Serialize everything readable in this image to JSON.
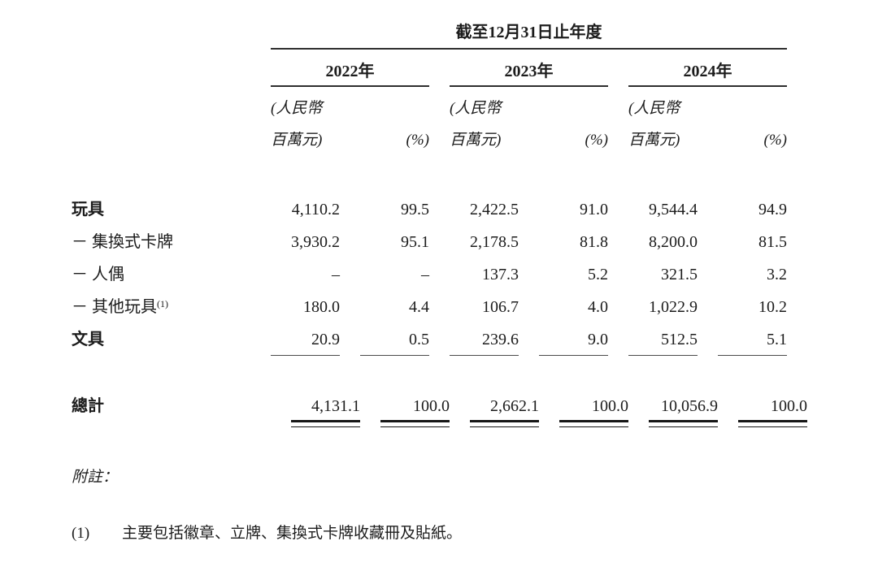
{
  "table": {
    "period_header": "截至12月31日止年度",
    "years": [
      {
        "label": "2022年"
      },
      {
        "label": "2023年"
      },
      {
        "label": "2024年"
      }
    ],
    "unit_top": "(人民幣",
    "unit_bottom": "百萬元)",
    "pct_label": "(%)",
    "rows": [
      {
        "label": "玩具",
        "values": [
          "4,110.2",
          "99.5",
          "2,422.5",
          "91.0",
          "9,544.4",
          "94.9"
        ]
      },
      {
        "label": "－ 集換式卡牌",
        "values": [
          "3,930.2",
          "95.1",
          "2,178.5",
          "81.8",
          "8,200.0",
          "81.5"
        ]
      },
      {
        "label": "－ 人偶",
        "values": [
          "–",
          "–",
          "137.3",
          "5.2",
          "321.5",
          "3.2"
        ]
      },
      {
        "label": "－ 其他玩具",
        "sup": "(1)",
        "values": [
          "180.0",
          "4.4",
          "106.7",
          "4.0",
          "1,022.9",
          "10.2"
        ]
      },
      {
        "label": "文具",
        "values": [
          "20.9",
          "0.5",
          "239.6",
          "9.0",
          "512.5",
          "5.1"
        ]
      }
    ],
    "total": {
      "label": "總計",
      "values": [
        "4,131.1",
        "100.0",
        "2,662.1",
        "100.0",
        "10,056.9",
        "100.0"
      ]
    }
  },
  "footnotes": {
    "header": "附註：",
    "items": [
      {
        "marker": "(1)",
        "text": "主要包括徽章、立牌、集換式卡牌收藏冊及貼紙。"
      }
    ]
  },
  "colors": {
    "text": "#1c1c1c",
    "rule": "#2e2e2e",
    "thin_rule": "#4a4a4a",
    "total_rule": "#161616"
  }
}
